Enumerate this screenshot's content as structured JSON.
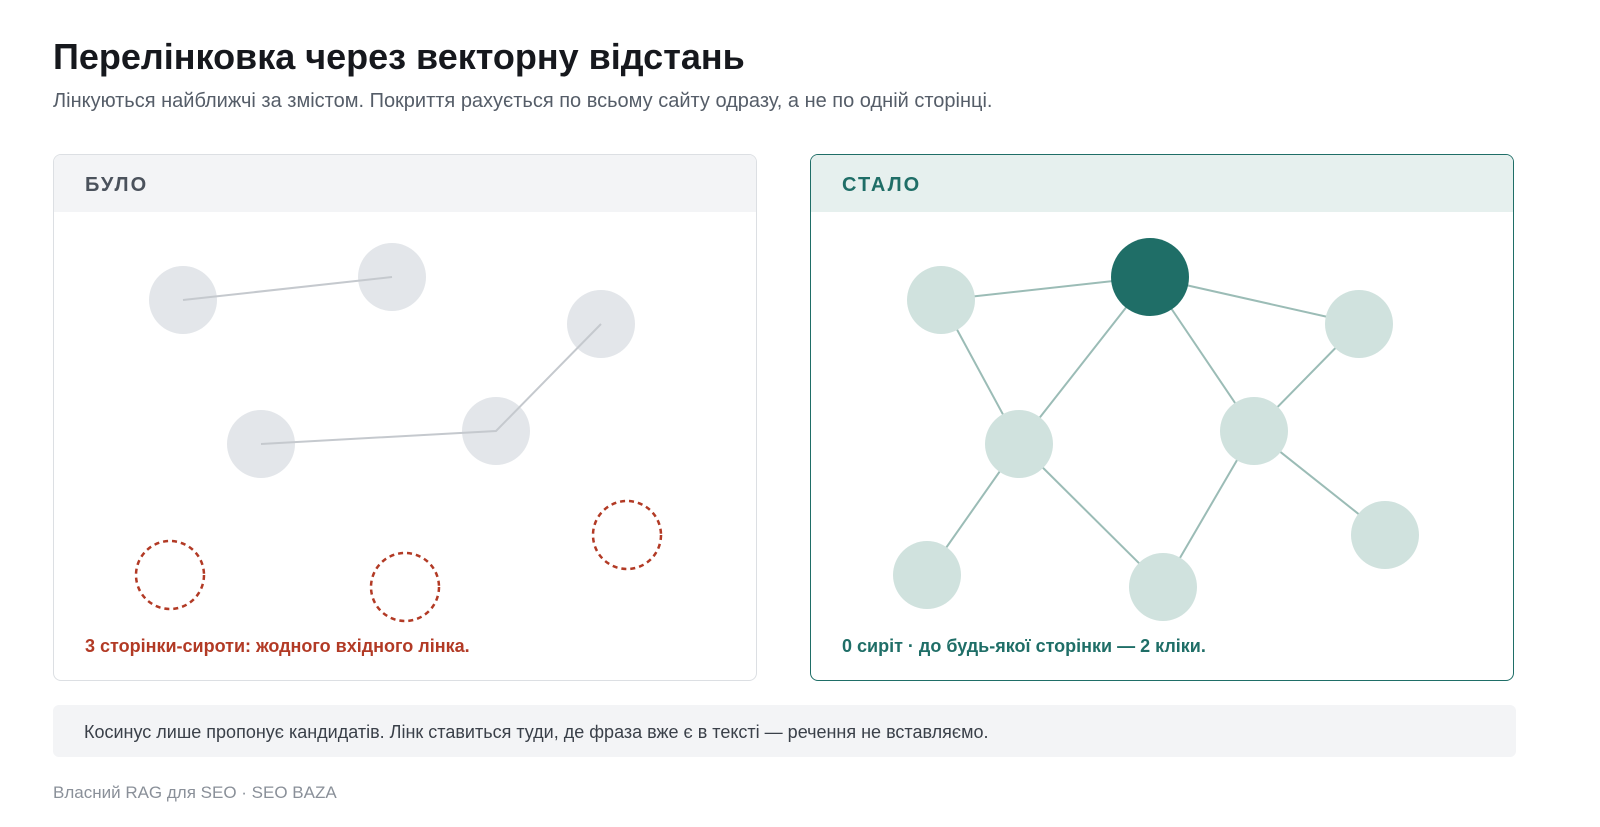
{
  "header": {
    "title": "Перелінковка через векторну відстань",
    "subtitle": "Лінкуються найближчі за змістом. Покриття рахується по всьому сайту одразу, а не по одній сторінці."
  },
  "panels": [
    {
      "label": "БУЛО",
      "caption": "3 сторінки-сироти: жодного вхідного лінка."
    },
    {
      "label": "СТАЛО",
      "caption": "0 сиріт · до будь-якої сторінки — 2 кліки."
    }
  ],
  "note": "Косинус лише пропонує кандидатів. Лінк ставиться туди, де фраза вже є в тексті — речення не вставляємо.",
  "footer": "Власний RAG для SEO · SEO BAZA"
}
